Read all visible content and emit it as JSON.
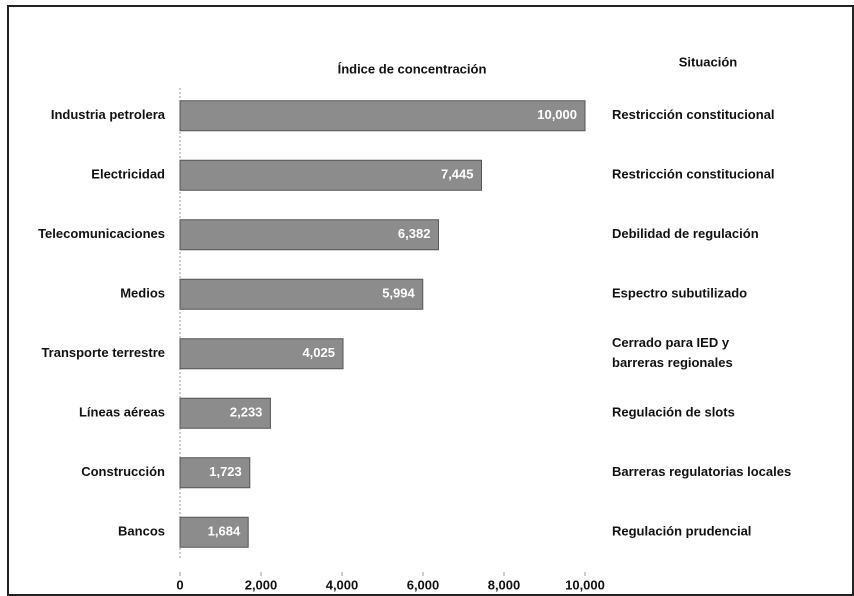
{
  "chart_data": {
    "type": "bar",
    "orientation": "horizontal",
    "title": "Índice de concentración",
    "side_header": "Situación",
    "categories": [
      "Industria petrolera",
      "Electricidad",
      "Telecomunicaciones",
      "Medios",
      "Transporte terrestre",
      "Líneas aéreas",
      "Construcción",
      "Bancos"
    ],
    "values": [
      10000,
      7445,
      6382,
      5994,
      4025,
      2233,
      1723,
      1684
    ],
    "value_labels": [
      "10,000",
      "7,445",
      "6,382",
      "5,994",
      "4,025",
      "2,233",
      "1,723",
      "1,684"
    ],
    "situations": [
      [
        "Restricción constitucional"
      ],
      [
        "Restricción constitucional"
      ],
      [
        "Debilidad de regulación"
      ],
      [
        "Espectro subutilizado"
      ],
      [
        "Cerrado para IED y",
        "barreras regionales"
      ],
      [
        "Regulación de slots"
      ],
      [
        "Barreras regulatorias locales"
      ],
      [
        "Regulación prudencial"
      ]
    ],
    "color": "#8c8c8c",
    "xlim": [
      0,
      10000
    ],
    "xticks": [
      0,
      {
        "value": 2000,
        "label": "2,000"
      },
      {
        "value": 4000,
        "label": "4,000"
      },
      {
        "value": 6000,
        "label": "6,000"
      },
      {
        "value": 8000,
        "label": "8,000"
      },
      {
        "value": 10000,
        "label": "10,000"
      }
    ]
  }
}
